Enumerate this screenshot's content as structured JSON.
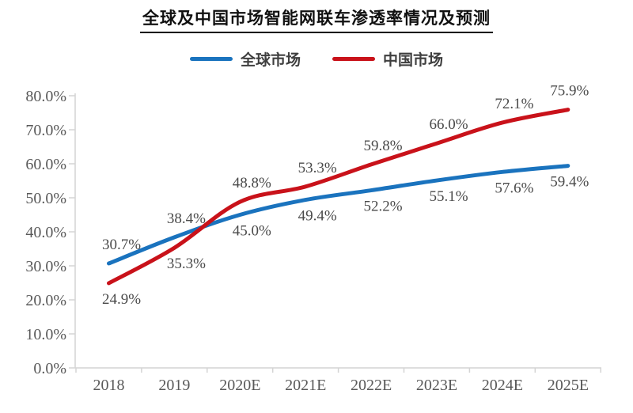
{
  "page": {
    "background": "#ffffff"
  },
  "chart_data": {
    "type": "line",
    "title": "全球及中国市场智能网联车渗透率情况及预测",
    "categories": [
      "2018",
      "2019",
      "2020E",
      "2021E",
      "2022E",
      "2023E",
      "2024E",
      "2025E"
    ],
    "series": [
      {
        "name": "全球市场",
        "color": "#1A73BE",
        "values": [
          30.7,
          38.4,
          45.0,
          49.4,
          52.2,
          55.1,
          57.6,
          59.4
        ],
        "labels": [
          "30.7%",
          "38.4%",
          "45.0%",
          "49.4%",
          "52.2%",
          "55.1%",
          "57.6%",
          "59.4%"
        ]
      },
      {
        "name": "中国市场",
        "color": "#C9121A",
        "values": [
          24.9,
          35.3,
          48.8,
          53.3,
          59.8,
          66.0,
          72.1,
          75.9
        ],
        "labels": [
          "24.9%",
          "35.3%",
          "48.8%",
          "53.3%",
          "59.8%",
          "66.0%",
          "72.1%",
          "75.9%"
        ]
      }
    ],
    "ylim": [
      0,
      80
    ],
    "ytick_labels": [
      "0.0%",
      "10.0%",
      "20.0%",
      "30.0%",
      "40.0%",
      "50.0%",
      "60.0%",
      "70.0%",
      "80.0%"
    ],
    "xlabel": "",
    "ylabel": "",
    "grid": false,
    "legend_position": "top",
    "data_labels": true,
    "colors": {
      "axis": "#D4D4D4",
      "tick_label": "#595959",
      "data_label": "#4A4A4A",
      "title": "#111111",
      "legend_label": "#3F3F3F"
    }
  }
}
